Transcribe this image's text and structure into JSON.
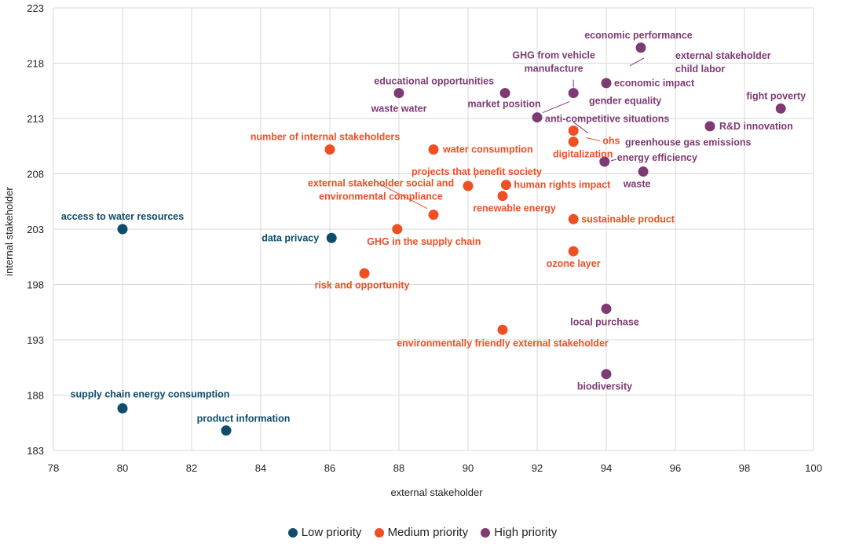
{
  "chart_data": {
    "type": "scatter",
    "title": "",
    "xlabel": "external stakeholder",
    "ylabel": "internal stakeholder",
    "xlim": [
      78,
      100
    ],
    "ylim": [
      183,
      223
    ],
    "xticks": [
      78,
      80,
      82,
      84,
      86,
      88,
      90,
      92,
      94,
      96,
      98,
      100
    ],
    "yticks": [
      183,
      188,
      193,
      198,
      203,
      208,
      213,
      218,
      223
    ],
    "grid": true,
    "legend_position": "bottom-center",
    "series": [
      {
        "name": "Low priority",
        "color": "#0e4d6b",
        "points": [
          {
            "label": "access to water resources",
            "x": 80,
            "y": 203.0
          },
          {
            "label": "data privacy",
            "x": 86.05,
            "y": 202.2
          },
          {
            "label": "supply chain energy consumption",
            "x": 80,
            "y": 186.8
          },
          {
            "label": "product information",
            "x": 83,
            "y": 184.8
          }
        ]
      },
      {
        "name": "Medium priority",
        "color": "#f04e23",
        "points": [
          {
            "label": "number of internal stakeholders",
            "x": 86,
            "y": 210.2
          },
          {
            "label": "water consumption",
            "x": 89,
            "y": 210.2
          },
          {
            "label": "ohs",
            "x": 93.05,
            "y": 211.9
          },
          {
            "label": "digitalization",
            "x": 93.05,
            "y": 210.9
          },
          {
            "label": "projects that benefit society",
            "x": 90,
            "y": 206.9
          },
          {
            "label": "human rights impact",
            "x": 91.1,
            "y": 207.0
          },
          {
            "label": "renewable energy",
            "x": 91,
            "y": 206.0
          },
          {
            "label": "external stakeholder social and environmental compliance",
            "x": 89,
            "y": 204.3
          },
          {
            "label": "sustainable product",
            "x": 93.05,
            "y": 203.9
          },
          {
            "label": "GHG in the supply chain",
            "x": 87.95,
            "y": 203.0
          },
          {
            "label": "ozone layer",
            "x": 93.05,
            "y": 201.0
          },
          {
            "label": "risk and opportunity",
            "x": 87,
            "y": 199.0
          },
          {
            "label": "environmentally friendly external stakeholder",
            "x": 91,
            "y": 193.9
          }
        ]
      },
      {
        "name": "High priority",
        "color": "#7e3a72",
        "points": [
          {
            "label": "economic performance",
            "x": 95,
            "y": 219.4
          },
          {
            "label": "external stakeholder child labor",
            "x": 94,
            "y": 216.2,
            "label_only_connector": true
          },
          {
            "label": "economic impact",
            "x": 94,
            "y": 216.2
          },
          {
            "label": "GHG from vehicle manufacture",
            "x": 93.05,
            "y": 215.3
          },
          {
            "label": "educational opportunities",
            "x": 91.07,
            "y": 215.3
          },
          {
            "label": "market position",
            "x": 91.07,
            "y": 215.3,
            "label_only_connector": true
          },
          {
            "label": "waste water",
            "x": 88,
            "y": 215.3
          },
          {
            "label": "gender equality",
            "x": 92,
            "y": 213.1,
            "label_only_connector": true
          },
          {
            "label": "anti-competitive situations",
            "x": 92,
            "y": 213.1
          },
          {
            "label": "greenhouse gas emissions",
            "x": 92,
            "y": 213.1,
            "label_only_connector": true
          },
          {
            "label": "fight poverty",
            "x": 99.05,
            "y": 213.9
          },
          {
            "label": "R&D innovation",
            "x": 97,
            "y": 212.3
          },
          {
            "label": "energy efficiency",
            "x": 93.95,
            "y": 209.1
          },
          {
            "label": "waste",
            "x": 95.07,
            "y": 208.2
          },
          {
            "label": "local purchase",
            "x": 94,
            "y": 195.8
          },
          {
            "label": "biodiversity",
            "x": 94,
            "y": 189.9
          }
        ]
      }
    ]
  },
  "legend": [
    {
      "label": "Low priority",
      "color": "#0e4d6b"
    },
    {
      "label": "Medium priority",
      "color": "#f04e23"
    },
    {
      "label": "High priority",
      "color": "#7e3a72"
    }
  ]
}
